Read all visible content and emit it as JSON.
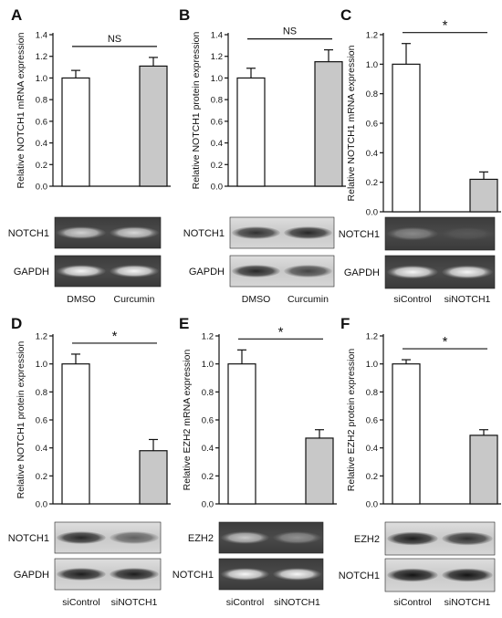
{
  "chart_data": [
    {
      "type": "bar",
      "panel": "A",
      "ylabel": "Relative NOTCH1 mRNA expression",
      "categories": [
        "DMSO",
        "Curcumin"
      ],
      "values": [
        1.0,
        1.11
      ],
      "errors": [
        0.07,
        0.08
      ],
      "fills": [
        "#ffffff",
        "#c8c8c8"
      ],
      "ylim": [
        0,
        1.4
      ],
      "yticks": [
        "0.0",
        "0.2",
        "0.4",
        "0.6",
        "0.8",
        "1.0",
        "1.2",
        "1.4"
      ],
      "significance": "NS",
      "blots": [
        {
          "label": "NOTCH1",
          "kind": "gel",
          "intensity": [
            0.75,
            0.78
          ]
        },
        {
          "label": "GAPDH",
          "kind": "gel",
          "intensity": [
            0.95,
            0.95
          ]
        }
      ],
      "category_labels_below": true
    },
    {
      "type": "bar",
      "panel": "B",
      "ylabel": "Relative NOTCH1 protein expression",
      "categories": [
        "DMSO",
        "Curcumin"
      ],
      "values": [
        1.0,
        1.15
      ],
      "errors": [
        0.09,
        0.11
      ],
      "fills": [
        "#ffffff",
        "#c8c8c8"
      ],
      "ylim": [
        0,
        1.4
      ],
      "yticks": [
        "0.0",
        "0.2",
        "0.4",
        "0.6",
        "0.8",
        "1.0",
        "1.2",
        "1.4"
      ],
      "significance": "NS",
      "blots": [
        {
          "label": "NOTCH1",
          "kind": "western",
          "intensity": [
            0.8,
            0.85
          ]
        },
        {
          "label": "GAPDH",
          "kind": "western",
          "intensity": [
            0.85,
            0.7
          ]
        }
      ],
      "category_labels_below": true
    },
    {
      "type": "bar",
      "panel": "C",
      "ylabel": "Relative NOTCH1 mRNA expression",
      "categories": [
        "siControl",
        "siNOTCH1"
      ],
      "values": [
        1.0,
        0.22
      ],
      "errors": [
        0.14,
        0.05
      ],
      "fills": [
        "#ffffff",
        "#c8c8c8"
      ],
      "ylim": [
        0,
        1.2
      ],
      "yticks": [
        "0.0",
        "0.2",
        "0.4",
        "0.6",
        "0.8",
        "1.0",
        "1.2"
      ],
      "significance": "*",
      "blots": [
        {
          "label": "NOTCH1",
          "kind": "gel",
          "intensity": [
            0.35,
            0.08
          ]
        },
        {
          "label": "GAPDH",
          "kind": "gel",
          "intensity": [
            0.95,
            0.95
          ]
        }
      ],
      "category_labels_below": true
    },
    {
      "type": "bar",
      "panel": "D",
      "ylabel": "Relative NOTCH1 protein expression",
      "categories": [
        "siControl",
        "siNOTCH1"
      ],
      "values": [
        1.0,
        0.38
      ],
      "errors": [
        0.07,
        0.08
      ],
      "fills": [
        "#ffffff",
        "#c8c8c8"
      ],
      "ylim": [
        0,
        1.2
      ],
      "yticks": [
        "0.0",
        "0.2",
        "0.4",
        "0.6",
        "0.8",
        "1.0",
        "1.2"
      ],
      "significance": "*",
      "blots": [
        {
          "label": "NOTCH1",
          "kind": "western",
          "intensity": [
            0.85,
            0.55
          ]
        },
        {
          "label": "GAPDH",
          "kind": "western",
          "intensity": [
            0.9,
            0.9
          ]
        }
      ],
      "category_labels_below": true
    },
    {
      "type": "bar",
      "panel": "E",
      "ylabel": "Relative EZH2 mRNA expression",
      "categories": [
        "siControl",
        "siNOTCH1"
      ],
      "values": [
        1.0,
        0.47
      ],
      "errors": [
        0.1,
        0.06
      ],
      "fills": [
        "#ffffff",
        "#c8c8c8"
      ],
      "ylim": [
        0,
        1.2
      ],
      "yticks": [
        "0.0",
        "0.2",
        "0.4",
        "0.6",
        "0.8",
        "1.0",
        "1.2"
      ],
      "significance": "*",
      "blots": [
        {
          "label": "EZH2",
          "kind": "gel",
          "intensity": [
            0.7,
            0.4
          ]
        },
        {
          "label": "NOTCH1",
          "kind": "gel",
          "intensity": [
            0.95,
            0.95
          ]
        }
      ],
      "category_labels_below": true
    },
    {
      "type": "bar",
      "panel": "F",
      "ylabel": "Relative EZH2 protein expression",
      "categories": [
        "siControl",
        "siNOTCH1"
      ],
      "values": [
        1.0,
        0.49
      ],
      "errors": [
        0.03,
        0.04
      ],
      "fills": [
        "#ffffff",
        "#c8c8c8"
      ],
      "ylim": [
        0,
        1.2
      ],
      "yticks": [
        "0.0",
        "0.2",
        "0.4",
        "0.6",
        "0.8",
        "1.0",
        "1.2"
      ],
      "significance": "*",
      "blots": [
        {
          "label": "EZH2",
          "kind": "western",
          "intensity": [
            0.9,
            0.8
          ]
        },
        {
          "label": "NOTCH1",
          "kind": "western",
          "intensity": [
            0.95,
            0.95
          ]
        }
      ],
      "category_labels_below": true
    }
  ]
}
